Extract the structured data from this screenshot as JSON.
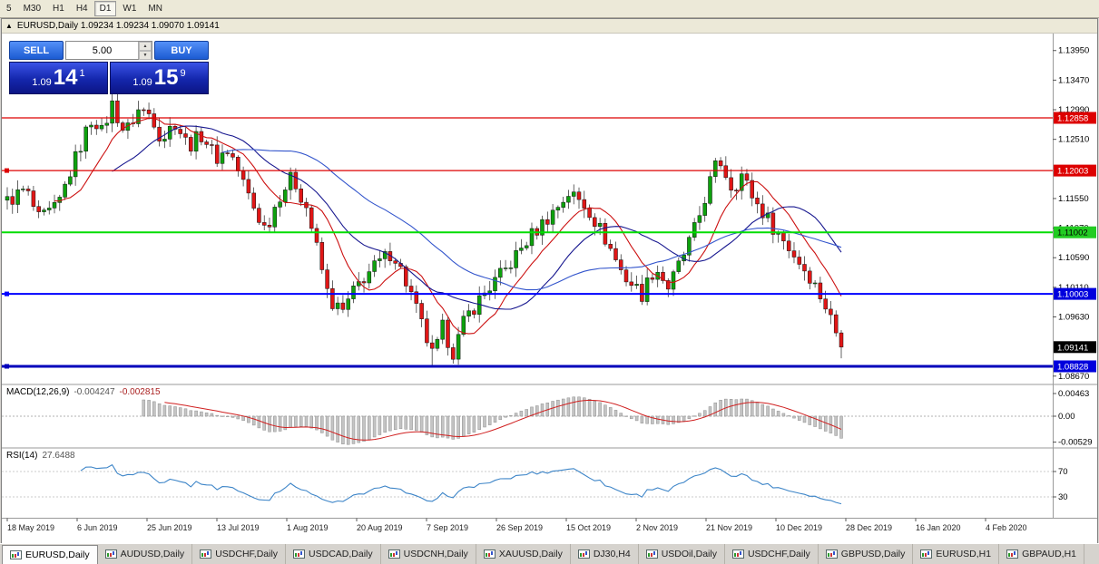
{
  "toolbar": {
    "timeframes": [
      "5",
      "M30",
      "H1",
      "H4",
      "D1",
      "W1",
      "MN"
    ],
    "active": "D1"
  },
  "window": {
    "title": "EURUSD,Daily 1.09234 1.09234 1.09070 1.09141"
  },
  "one_click": {
    "sell_label": "SELL",
    "buy_label": "BUY",
    "volume": "5.00",
    "sell_price": {
      "prefix": "1.09",
      "big": "14",
      "sup": "1"
    },
    "buy_price": {
      "prefix": "1.09",
      "big": "15",
      "sup": "9"
    }
  },
  "indicators": {
    "macd": {
      "label": "MACD(12,26,9)",
      "value_main": "-0.004247",
      "value_signal": "-0.002815",
      "axis_labels": [
        "0.00463",
        "0.00",
        "-0.00529"
      ]
    },
    "rsi": {
      "label": "RSI(14)",
      "value": "27.6488",
      "axis_labels": [
        "70",
        "30"
      ],
      "levels": [
        70,
        30
      ]
    }
  },
  "date_axis": [
    "18 May 2019",
    "6 Jun 2019",
    "25 Jun 2019",
    "13 Jul 2019",
    "1 Aug 2019",
    "20 Aug 2019",
    "7 Sep 2019",
    "26 Sep 2019",
    "15 Oct 2019",
    "2 Nov 2019",
    "21 Nov 2019",
    "10 Dec 2019",
    "28 Dec 2019",
    "16 Jan 2020",
    "4 Feb 2020"
  ],
  "tabs": [
    {
      "label": "EURUSD,Daily",
      "active": true
    },
    {
      "label": "AUDUSD,Daily"
    },
    {
      "label": "USDCHF,Daily"
    },
    {
      "label": "USDCAD,Daily"
    },
    {
      "label": "USDCNH,Daily"
    },
    {
      "label": "XAUUSD,Daily"
    },
    {
      "label": "DJ30,H4"
    },
    {
      "label": "USDOil,Daily"
    },
    {
      "label": "USDCHF,Daily"
    },
    {
      "label": "GBPUSD,Daily"
    },
    {
      "label": "EURUSD,H1"
    },
    {
      "label": "GBPAUD,H1"
    }
  ],
  "chart_data": {
    "type": "candlestick",
    "symbol": "EURUSD",
    "timeframe": "Daily",
    "ohlc": {
      "open": "1.09234",
      "high": "1.09234",
      "low": "1.09070",
      "close": "1.09141"
    },
    "bid": "1.09141",
    "ask": "1.09159",
    "y_ticks": [
      "1.13950",
      "1.13470",
      "1.12990",
      "1.12510",
      "1.11550",
      "1.11070",
      "1.10590",
      "1.10110",
      "1.09630",
      "1.08670"
    ],
    "hlines": [
      {
        "price": 1.12858,
        "label": "1.12858",
        "color": "#dd0000",
        "badge_bg": "#dd0000",
        "badge_fg": "#ffffff",
        "width": 1.3
      },
      {
        "price": 1.12003,
        "label": "1.12003",
        "color": "#dd0000",
        "badge_bg": "#dd0000",
        "badge_fg": "#ffffff",
        "width": 1.3,
        "handle": true
      },
      {
        "price": 1.11002,
        "label": "1.11002",
        "color": "#00dd00",
        "badge_bg": "#22cc22",
        "badge_fg": "#000000",
        "width": 2
      },
      {
        "price": 1.10003,
        "label": "1.10003",
        "color": "#0000ff",
        "badge_bg": "#0000dd",
        "badge_fg": "#ffffff",
        "width": 2,
        "handle": true
      },
      {
        "price": 1.08828,
        "label": "1.08828",
        "color": "#0000bb",
        "badge_bg": "#0000dd",
        "badge_fg": "#ffffff",
        "width": 3,
        "handle": true
      }
    ],
    "current_price": {
      "label": "1.09141",
      "price": 1.09141,
      "badge_bg": "#000000",
      "badge_fg": "#ffffff"
    },
    "last_close": 1.09141,
    "num_candles": 160,
    "visible_range": {
      "start": "18 May 2019",
      "end": "4 Feb 2020"
    },
    "price_anchors": [
      [
        0.0,
        1.115
      ],
      [
        0.022,
        1.117
      ],
      [
        0.038,
        1.112
      ],
      [
        0.06,
        1.114
      ],
      [
        0.076,
        1.12
      ],
      [
        0.092,
        1.1255
      ],
      [
        0.103,
        1.129
      ],
      [
        0.114,
        1.126
      ],
      [
        0.125,
        1.131
      ],
      [
        0.141,
        1.126
      ],
      [
        0.158,
        1.13
      ],
      [
        0.174,
        1.129
      ],
      [
        0.185,
        1.125
      ],
      [
        0.201,
        1.128
      ],
      [
        0.217,
        1.124
      ],
      [
        0.234,
        1.126
      ],
      [
        0.25,
        1.122
      ],
      [
        0.266,
        1.1235
      ],
      [
        0.283,
        1.118
      ],
      [
        0.299,
        1.113
      ],
      [
        0.31,
        1.1105
      ],
      [
        0.326,
        1.116
      ],
      [
        0.342,
        1.119
      ],
      [
        0.359,
        1.114
      ],
      [
        0.37,
        1.108
      ],
      [
        0.386,
        1.099
      ],
      [
        0.402,
        1.097
      ],
      [
        0.418,
        1.101
      ],
      [
        0.429,
        1.103
      ],
      [
        0.462,
        1.107
      ],
      [
        0.484,
        1.1
      ],
      [
        0.502,
        1.093
      ],
      [
        0.511,
        1.0895
      ],
      [
        0.522,
        1.0945
      ],
      [
        0.535,
        1.0905
      ],
      [
        0.549,
        1.096
      ],
      [
        0.571,
        1.1
      ],
      [
        0.598,
        1.104
      ],
      [
        0.625,
        1.109
      ],
      [
        0.652,
        1.113
      ],
      [
        0.674,
        1.1165
      ],
      [
        0.696,
        1.114
      ],
      [
        0.717,
        1.109
      ],
      [
        0.739,
        1.103
      ],
      [
        0.761,
        1.1
      ],
      [
        0.777,
        1.1045
      ],
      [
        0.793,
        1.101
      ],
      [
        0.81,
        1.106
      ],
      [
        0.826,
        1.111
      ],
      [
        0.842,
        1.118
      ],
      [
        0.853,
        1.122
      ],
      [
        0.87,
        1.117
      ],
      [
        0.88,
        1.1195
      ],
      [
        0.897,
        1.115
      ],
      [
        0.918,
        1.111
      ],
      [
        0.94,
        1.107
      ],
      [
        0.962,
        1.103
      ],
      [
        0.978,
        1.099
      ],
      [
        0.991,
        1.095
      ],
      [
        1.0,
        1.09141
      ]
    ],
    "moving_averages": [
      {
        "period": 10,
        "color": "#cc1111"
      },
      {
        "period": 21,
        "color": "#17178f"
      },
      {
        "period": 42,
        "color": "#3355cc"
      }
    ],
    "colors": {
      "up": "#0da10d",
      "down": "#e01616",
      "wick": "#222222",
      "macd_hist": "#c4c4c4",
      "macd_signal": "#d02020",
      "rsi_line": "#3d85c8"
    }
  }
}
